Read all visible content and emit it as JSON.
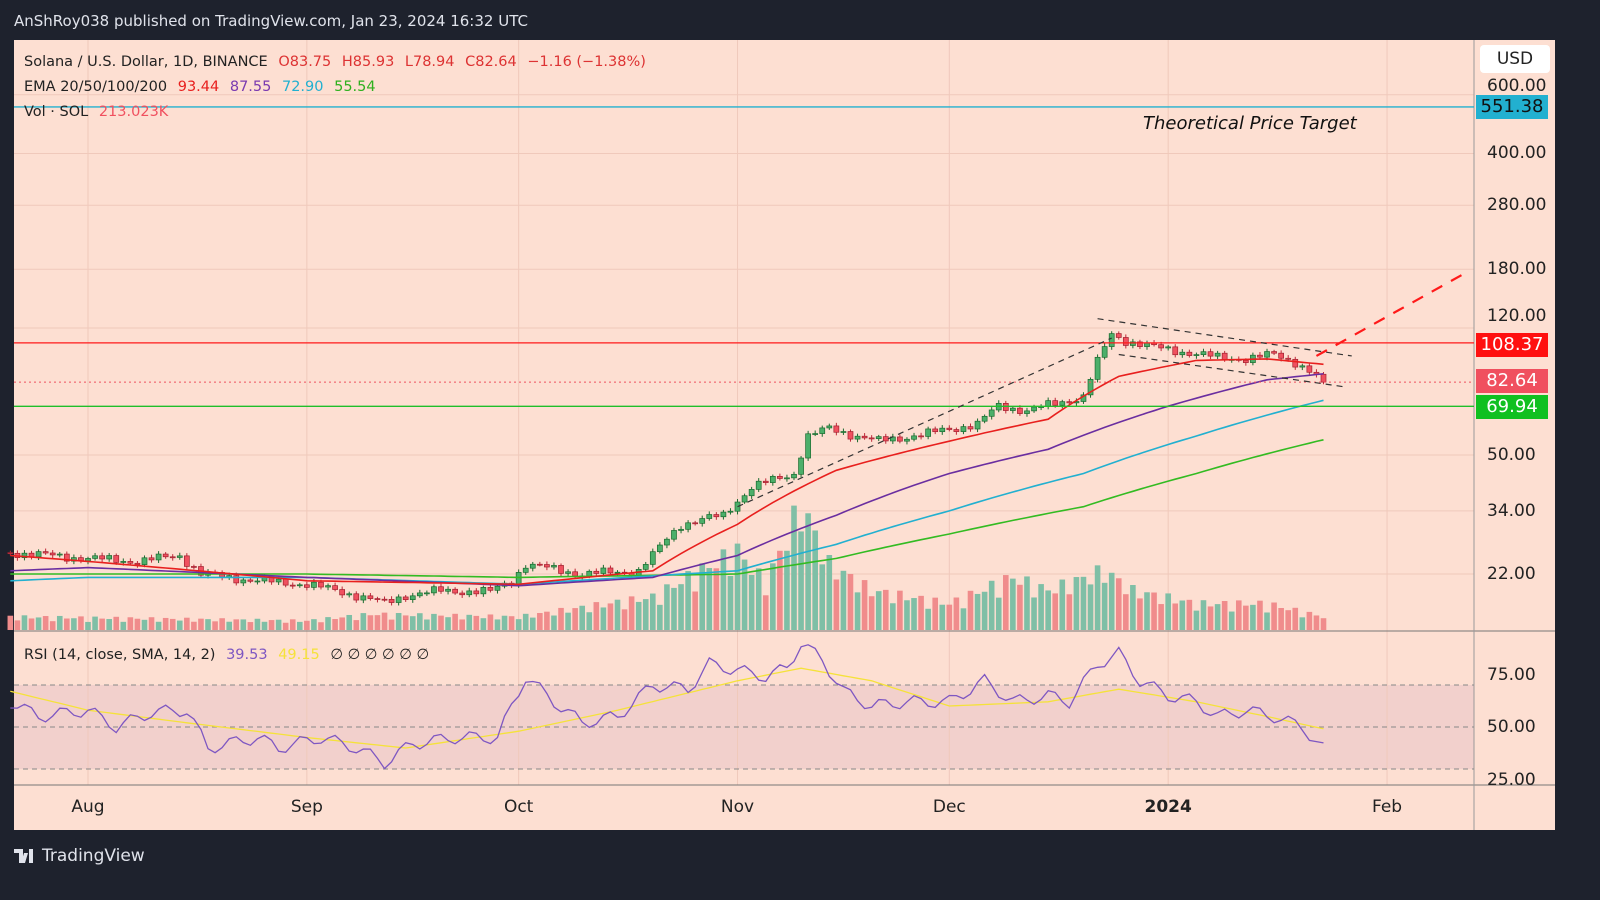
{
  "header": {
    "published": "AnShRoy038 published on TradingView.com, Jan 23, 2024 16:32 UTC"
  },
  "brand": {
    "name": "TradingView"
  },
  "legend": {
    "symbol": "Solana / U.S. Dollar, 1D, BINANCE",
    "open": "O83.75",
    "high": "H85.93",
    "low": "L78.94",
    "close": "C82.64",
    "change": "−1.16 (−1.38%)",
    "ema_label": "EMA 20/50/100/200",
    "ema20": "93.44",
    "ema50": "87.55",
    "ema100": "72.90",
    "ema200": "55.54",
    "vol_label": "Vol · SOL",
    "vol_value": "213.023K",
    "rsi_label": "RSI (14, close, SMA, 14, 2)",
    "rsi_value": "39.53",
    "rsi_sma": "49.15",
    "rsi_extra": "∅ ∅ ∅ ∅ ∅ ∅"
  },
  "currency": "USD",
  "annotation": "Theoretical Price Target",
  "colors": {
    "bg": "#fddfd2",
    "up": "#4caf6a",
    "down": "#f0505f",
    "ema20": "#e8201e",
    "ema50": "#6a2ea0",
    "ema100": "#22b0d0",
    "ema200": "#33bb22",
    "rsi": "#7e57c2",
    "rsi_sma": "#f5e23a"
  },
  "chart_data": {
    "type": "candlestick",
    "scale": "log",
    "price_ticks": [
      "600.00",
      "400.00",
      "280.00",
      "180.00",
      "120.00",
      "50.00",
      "34.00",
      "22.00"
    ],
    "rsi_ticks": [
      "75.00",
      "50.00",
      "25.00"
    ],
    "time_ticks": [
      {
        "label": "Aug",
        "date": "2023-08-01"
      },
      {
        "label": "Sep",
        "date": "2023-09-01"
      },
      {
        "label": "Oct",
        "date": "2023-10-01"
      },
      {
        "label": "Nov",
        "date": "2023-11-01"
      },
      {
        "label": "Dec",
        "date": "2023-12-01"
      },
      {
        "label": "2024",
        "date": "2024-01-01"
      },
      {
        "label": "Feb",
        "date": "2024-02-01"
      }
    ],
    "price_levels": [
      {
        "label": "551.38",
        "value": 551.38,
        "color": "#22b0d0",
        "style": "solid"
      },
      {
        "label": "108.37",
        "value": 108.37,
        "color": "#ff1a1a",
        "style": "solid"
      },
      {
        "label": "82.64",
        "value": 82.64,
        "color": "#f0505f",
        "style": "dotted"
      },
      {
        "label": "69.94",
        "value": 69.94,
        "color": "#1fbf2a",
        "style": "solid"
      }
    ],
    "close_path": [
      [
        "2023-07-21",
        25.5
      ],
      [
        "2023-08-01",
        24.5
      ],
      [
        "2023-08-08",
        24
      ],
      [
        "2023-08-14",
        25
      ],
      [
        "2023-08-17",
        22
      ],
      [
        "2023-08-25",
        21
      ],
      [
        "2023-09-01",
        20.5
      ],
      [
        "2023-09-08",
        19
      ],
      [
        "2023-09-12",
        18
      ],
      [
        "2023-09-15",
        19
      ],
      [
        "2023-09-20",
        19.6
      ],
      [
        "2023-09-27",
        19.5
      ],
      [
        "2023-09-30",
        21
      ],
      [
        "2023-10-02",
        23.5
      ],
      [
        "2023-10-10",
        22
      ],
      [
        "2023-10-18",
        22.5
      ],
      [
        "2023-10-20",
        25
      ],
      [
        "2023-10-24",
        31
      ],
      [
        "2023-10-30",
        33
      ],
      [
        "2023-11-03",
        40
      ],
      [
        "2023-11-06",
        42
      ],
      [
        "2023-11-09",
        44
      ],
      [
        "2023-11-11",
        57
      ],
      [
        "2023-11-14",
        60
      ],
      [
        "2023-11-18",
        57
      ],
      [
        "2023-11-21",
        55
      ],
      [
        "2023-11-28",
        58
      ],
      [
        "2023-12-05",
        62
      ],
      [
        "2023-12-08",
        70
      ],
      [
        "2023-12-12",
        68
      ],
      [
        "2023-12-17",
        72
      ],
      [
        "2023-12-20",
        75
      ],
      [
        "2023-12-22",
        95
      ],
      [
        "2023-12-24",
        115
      ],
      [
        "2023-12-26",
        110
      ],
      [
        "2023-12-30",
        105
      ],
      [
        "2024-01-03",
        102
      ],
      [
        "2024-01-08",
        98
      ],
      [
        "2024-01-12",
        97
      ],
      [
        "2024-01-16",
        100
      ],
      [
        "2024-01-19",
        95
      ],
      [
        "2024-01-22",
        86
      ],
      [
        "2024-01-23",
        82.64
      ]
    ],
    "ema20": [
      [
        "2023-07-21",
        25
      ],
      [
        "2023-08-01",
        24
      ],
      [
        "2023-09-01",
        21
      ],
      [
        "2023-10-01",
        20.5
      ],
      [
        "2023-10-20",
        22.5
      ],
      [
        "2023-11-01",
        31
      ],
      [
        "2023-11-15",
        45
      ],
      [
        "2023-12-01",
        55
      ],
      [
        "2023-12-15",
        64
      ],
      [
        "2023-12-25",
        86
      ],
      [
        "2024-01-05",
        96
      ],
      [
        "2024-01-15",
        97
      ],
      [
        "2024-01-23",
        93.44
      ]
    ],
    "ema50": [
      [
        "2023-07-21",
        22.5
      ],
      [
        "2023-08-01",
        23
      ],
      [
        "2023-09-01",
        21.5
      ],
      [
        "2023-10-01",
        20.3
      ],
      [
        "2023-10-20",
        21.5
      ],
      [
        "2023-11-01",
        25
      ],
      [
        "2023-11-15",
        33
      ],
      [
        "2023-12-01",
        44
      ],
      [
        "2023-12-15",
        52
      ],
      [
        "2024-01-01",
        70
      ],
      [
        "2024-01-15",
        84
      ],
      [
        "2024-01-23",
        87.55
      ]
    ],
    "ema100": [
      [
        "2023-07-21",
        21
      ],
      [
        "2023-08-01",
        21.5
      ],
      [
        "2023-09-01",
        21.5
      ],
      [
        "2023-10-01",
        20.5
      ],
      [
        "2023-11-01",
        22.5
      ],
      [
        "2023-11-15",
        27
      ],
      [
        "2023-12-01",
        34
      ],
      [
        "2023-12-20",
        44
      ],
      [
        "2024-01-05",
        57
      ],
      [
        "2024-01-23",
        72.9
      ]
    ],
    "ema200": [
      [
        "2023-07-21",
        22
      ],
      [
        "2023-09-01",
        22
      ],
      [
        "2023-10-01",
        21.5
      ],
      [
        "2023-11-01",
        22
      ],
      [
        "2023-11-15",
        24.5
      ],
      [
        "2023-12-01",
        29
      ],
      [
        "2023-12-20",
        35
      ],
      [
        "2024-01-05",
        44
      ],
      [
        "2024-01-23",
        55.54
      ]
    ],
    "volume_relative": [
      [
        "2023-07-21",
        0.1
      ],
      [
        "2023-09-01",
        0.07
      ],
      [
        "2023-09-10",
        0.12
      ],
      [
        "2023-10-01",
        0.1
      ],
      [
        "2023-10-20",
        0.25
      ],
      [
        "2023-10-25",
        0.4
      ],
      [
        "2023-11-01",
        0.6
      ],
      [
        "2023-11-05",
        0.35
      ],
      [
        "2023-11-10",
        0.95
      ],
      [
        "2023-11-14",
        0.5
      ],
      [
        "2023-11-20",
        0.3
      ],
      [
        "2023-12-01",
        0.2
      ],
      [
        "2023-12-10",
        0.4
      ],
      [
        "2023-12-15",
        0.3
      ],
      [
        "2023-12-23",
        0.45
      ],
      [
        "2023-12-27",
        0.3
      ],
      [
        "2024-01-05",
        0.2
      ],
      [
        "2024-01-15",
        0.2
      ],
      [
        "2024-01-23",
        0.1
      ]
    ],
    "rsi": [
      [
        "2023-07-21",
        62
      ],
      [
        "2023-07-25",
        55
      ],
      [
        "2023-08-01",
        58
      ],
      [
        "2023-08-05",
        50
      ],
      [
        "2023-08-10",
        57
      ],
      [
        "2023-08-15",
        58
      ],
      [
        "2023-08-18",
        40
      ],
      [
        "2023-08-25",
        45
      ],
      [
        "2023-08-28",
        40
      ],
      [
        "2023-09-03",
        45
      ],
      [
        "2023-09-08",
        40
      ],
      [
        "2023-09-12",
        33
      ],
      [
        "2023-09-16",
        42
      ],
      [
        "2023-09-22",
        45
      ],
      [
        "2023-09-28",
        45
      ],
      [
        "2023-10-02",
        74
      ],
      [
        "2023-10-06",
        62
      ],
      [
        "2023-10-10",
        52
      ],
      [
        "2023-10-15",
        55
      ],
      [
        "2023-10-20",
        70
      ],
      [
        "2023-10-25",
        68
      ],
      [
        "2023-10-28",
        80
      ],
      [
        "2023-11-01",
        77
      ],
      [
        "2023-11-05",
        74
      ],
      [
        "2023-11-08",
        78
      ],
      [
        "2023-11-10",
        90
      ],
      [
        "2023-11-13",
        82
      ],
      [
        "2023-11-16",
        67
      ],
      [
        "2023-11-20",
        60
      ],
      [
        "2023-11-25",
        62
      ],
      [
        "2023-12-01",
        62
      ],
      [
        "2023-12-06",
        72
      ],
      [
        "2023-12-10",
        62
      ],
      [
        "2023-12-15",
        65
      ],
      [
        "2023-12-18",
        62
      ],
      [
        "2023-12-22",
        80
      ],
      [
        "2023-12-25",
        85
      ],
      [
        "2023-12-28",
        72
      ],
      [
        "2024-01-01",
        65
      ],
      [
        "2024-01-05",
        62
      ],
      [
        "2024-01-08",
        55
      ],
      [
        "2024-01-12",
        58
      ],
      [
        "2024-01-16",
        55
      ],
      [
        "2024-01-20",
        50
      ],
      [
        "2024-01-23",
        39.53
      ]
    ],
    "rsi_sma": [
      [
        "2023-07-21",
        67
      ],
      [
        "2023-08-01",
        58
      ],
      [
        "2023-08-15",
        52
      ],
      [
        "2023-09-01",
        45
      ],
      [
        "2023-09-15",
        40
      ],
      [
        "2023-10-01",
        48
      ],
      [
        "2023-10-15",
        58
      ],
      [
        "2023-11-01",
        72
      ],
      [
        "2023-11-10",
        78
      ],
      [
        "2023-11-20",
        72
      ],
      [
        "2023-12-01",
        60
      ],
      [
        "2023-12-15",
        62
      ],
      [
        "2023-12-25",
        68
      ],
      [
        "2024-01-05",
        62
      ],
      [
        "2024-01-15",
        55
      ],
      [
        "2024-01-23",
        49.15
      ]
    ],
    "rsi_bands": [
      30,
      50,
      70
    ],
    "trendlines": [
      {
        "style": "dashed",
        "color": "#333",
        "from": [
          "2023-11-01",
          35
        ],
        "to": [
          "2023-12-24",
          112
        ]
      },
      {
        "style": "dashed",
        "color": "#333",
        "from": [
          "2023-12-22",
          128
        ],
        "to": [
          "2024-01-27",
          99
        ]
      },
      {
        "style": "dashed",
        "color": "#333",
        "from": [
          "2023-12-25",
          100
        ],
        "to": [
          "2024-01-26",
          80
        ]
      },
      {
        "style": "dashed",
        "color": "#ff1a1a",
        "from": [
          "2024-01-22",
          99
        ],
        "to": [
          "2024-02-12",
          175
        ]
      }
    ]
  }
}
